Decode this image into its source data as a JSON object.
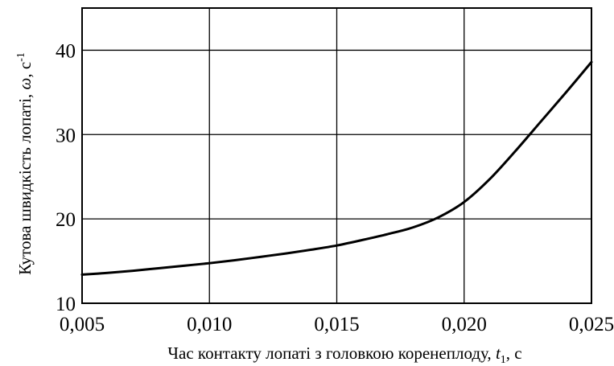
{
  "chart_data": {
    "type": "line",
    "title": "",
    "xlabel": {
      "prefix": "Час контакту лопаті з головкою коренеплоду, ",
      "symbol": "t",
      "subscript": "1",
      "unit": ", с"
    },
    "ylabel": {
      "prefix": "Кутова швидкість лопаті, ",
      "symbol": "ω",
      "unit": ", с",
      "superscript": "-1"
    },
    "xlim": [
      0.005,
      0.025
    ],
    "ylim": [
      10,
      45
    ],
    "x_ticks": [
      0.005,
      0.01,
      0.015,
      0.02,
      0.025
    ],
    "x_tick_labels": [
      "0,005",
      "0,010",
      "0,015",
      "0,020",
      "0,025"
    ],
    "y_ticks": [
      10,
      20,
      30,
      40
    ],
    "y_tick_labels": [
      "10",
      "20",
      "30",
      "40"
    ],
    "grid": true,
    "legend": "none",
    "series": [
      {
        "color": "#000000",
        "x": [
          0.005,
          0.006,
          0.007,
          0.008,
          0.009,
          0.01,
          0.011,
          0.012,
          0.013,
          0.014,
          0.015,
          0.016,
          0.017,
          0.018,
          0.019,
          0.02,
          0.021,
          0.022,
          0.023,
          0.024,
          0.025
        ],
        "y": [
          13.4,
          13.6,
          13.85,
          14.15,
          14.45,
          14.75,
          15.1,
          15.5,
          15.9,
          16.35,
          16.85,
          17.5,
          18.2,
          19.0,
          20.2,
          22.0,
          24.7,
          28.0,
          31.5,
          35.0,
          38.6
        ]
      }
    ]
  }
}
